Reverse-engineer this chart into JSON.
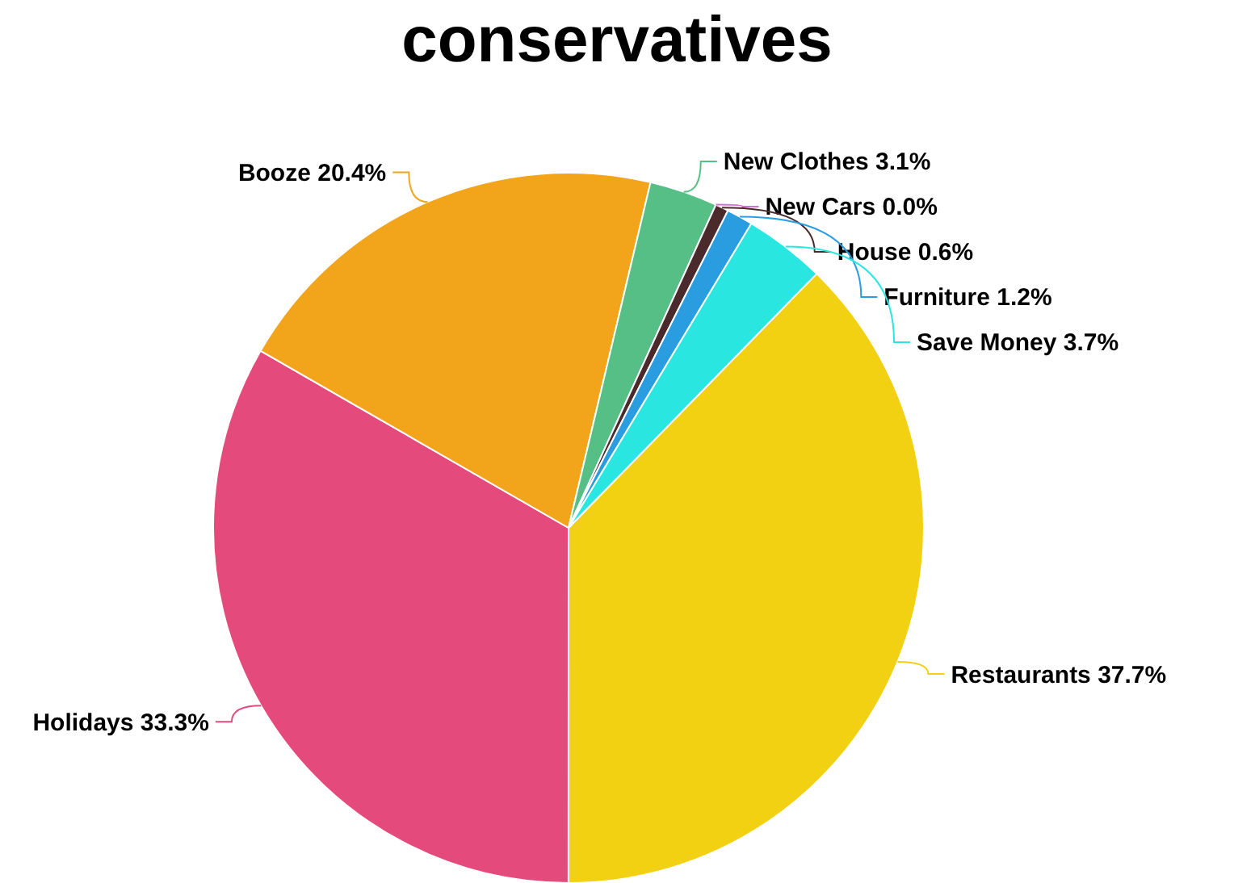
{
  "chart_data": {
    "type": "pie",
    "title": "conservatives",
    "categories": [
      "Restaurants",
      "Holidays",
      "Booze",
      "New Clothes",
      "New Cars",
      "House",
      "Furniture",
      "Save Money"
    ],
    "values": [
      37.7,
      33.3,
      20.4,
      3.1,
      0.0,
      0.6,
      1.2,
      3.7
    ],
    "value_labels": [
      "37.7%",
      "33.3%",
      "20.4%",
      "3.1%",
      "0.0%",
      "0.6%",
      "1.2%",
      "3.7%"
    ],
    "colors": [
      "#f2d012",
      "#e44b7c",
      "#f2a51b",
      "#56bf85",
      "#d070d0",
      "#4a2a2a",
      "#2a9de0",
      "#2ae6e0"
    ]
  }
}
